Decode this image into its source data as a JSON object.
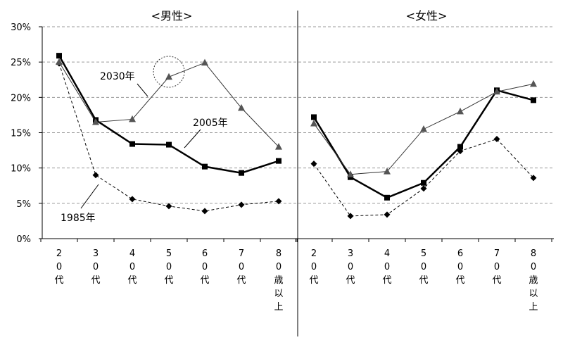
{
  "chart_data": [
    {
      "type": "line",
      "title": "<男性>",
      "categories": [
        "20代",
        "30代",
        "40代",
        "50代",
        "60代",
        "70代",
        "80歳以上"
      ],
      "category_labels": [
        [
          "2",
          "0",
          "代"
        ],
        [
          "3",
          "0",
          "代"
        ],
        [
          "4",
          "0",
          "代"
        ],
        [
          "5",
          "0",
          "代"
        ],
        [
          "6",
          "0",
          "代"
        ],
        [
          "7",
          "0",
          "代"
        ],
        [
          "8",
          "0",
          "歳",
          "以",
          "上"
        ]
      ],
      "ylim": [
        0,
        30
      ],
      "yticks": [
        "0%",
        "5%",
        "10%",
        "15%",
        "20%",
        "25%",
        "30%"
      ],
      "grid": true,
      "series": [
        {
          "name": "1985年",
          "marker": "diamond",
          "line": "dashed",
          "values": [
            24.8,
            9.0,
            5.6,
            4.6,
            3.9,
            4.8,
            5.3
          ]
        },
        {
          "name": "2005年",
          "marker": "square",
          "line": "thick",
          "values": [
            25.9,
            16.8,
            13.4,
            13.3,
            10.2,
            9.3,
            11.0
          ]
        },
        {
          "name": "2030年",
          "marker": "triangle",
          "line": "thin",
          "values": [
            25.0,
            16.5,
            16.9,
            22.9,
            24.9,
            18.5,
            13.0
          ]
        }
      ],
      "annotations": [
        "2030年",
        "2005年",
        "1985年"
      ]
    },
    {
      "type": "line",
      "title": "<女性>",
      "categories": [
        "20代",
        "30代",
        "40代",
        "50代",
        "60代",
        "70代",
        "80歳以上"
      ],
      "category_labels": [
        [
          "2",
          "0",
          "代"
        ],
        [
          "3",
          "0",
          "代"
        ],
        [
          "4",
          "0",
          "代"
        ],
        [
          "5",
          "0",
          "代"
        ],
        [
          "6",
          "0",
          "代"
        ],
        [
          "7",
          "0",
          "代"
        ],
        [
          "8",
          "0",
          "歳",
          "以",
          "上"
        ]
      ],
      "ylim": [
        0,
        30
      ],
      "grid": true,
      "series": [
        {
          "name": "1985年",
          "marker": "diamond",
          "line": "dashed",
          "values": [
            10.6,
            3.2,
            3.4,
            7.1,
            12.4,
            14.1,
            8.6
          ]
        },
        {
          "name": "2005年",
          "marker": "square",
          "line": "thick",
          "values": [
            17.2,
            8.7,
            5.8,
            7.9,
            13.0,
            21.0,
            19.6
          ]
        },
        {
          "name": "2030年",
          "marker": "triangle",
          "line": "thin",
          "values": [
            16.3,
            9.1,
            9.5,
            15.5,
            18.0,
            20.8,
            21.9
          ]
        }
      ]
    }
  ]
}
